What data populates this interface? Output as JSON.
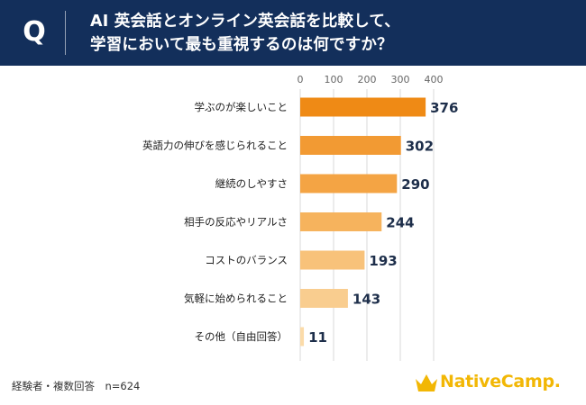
{
  "header": {
    "q_label": "Q",
    "question_line1": "AI 英会話とオンライン英会話を比較して、",
    "question_line2": "学習において最も重視するのは何ですか？"
  },
  "chart_data": {
    "type": "bar",
    "orientation": "horizontal",
    "categories": [
      "学ぶのが楽しいこと",
      "英語力の伸びを感じられること",
      "継続のしやすさ",
      "相手の反応やリアルさ",
      "コストのバランス",
      "気軽に始められること",
      "その他（自由回答）"
    ],
    "values": [
      376,
      302,
      290,
      244,
      193,
      143,
      11
    ],
    "xlim": [
      0,
      400
    ],
    "xticks": [
      0,
      100,
      200,
      300,
      400
    ],
    "grid": true,
    "bar_colors": [
      "#ef8a15",
      "#f29a33",
      "#f4a444",
      "#f6b35d",
      "#f8c27a",
      "#f9cd8f",
      "#fbdba9"
    ]
  },
  "footer": {
    "note": "経験者・複数回答　n=624",
    "brand": "NativeCamp."
  },
  "colors": {
    "header_bg": "#132f5b",
    "value_text": "#1d2e4a",
    "brand_yellow": "#f2b705"
  }
}
